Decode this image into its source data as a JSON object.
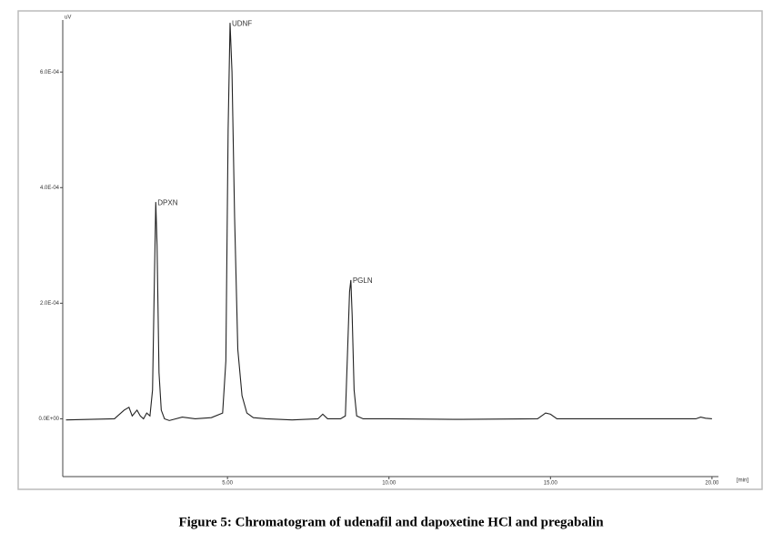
{
  "chart_data": {
    "type": "line",
    "caption": "Figure 5: Chromatogram of udenafil and dapoxetine HCl and pregabalin",
    "y_label": "uV",
    "x_label": "[min]",
    "x": [
      0,
      1.5,
      1.8,
      1.95,
      2.05,
      2.2,
      2.3,
      2.4,
      2.5,
      2.6,
      2.68,
      2.74,
      2.78,
      2.82,
      2.88,
      2.95,
      3.05,
      3.2,
      3.6,
      4.0,
      4.5,
      4.85,
      4.95,
      5.02,
      5.08,
      5.14,
      5.22,
      5.32,
      5.45,
      5.6,
      5.8,
      6.2,
      7.0,
      7.8,
      7.95,
      8.1,
      8.5,
      8.65,
      8.72,
      8.78,
      8.82,
      8.86,
      8.92,
      9.0,
      9.2,
      10.0,
      12.0,
      14.6,
      14.85,
      15.0,
      15.2,
      16.0,
      18.0,
      19.5,
      19.65,
      19.8,
      20.0
    ],
    "series": [
      {
        "color": "#222222",
        "values": [
          -2e-06,
          0,
          1.5e-05,
          2e-05,
          5e-06,
          1.5e-05,
          5e-06,
          0,
          1e-05,
          5e-06,
          5e-05,
          0.00025,
          0.000375,
          0.0003,
          8e-05,
          1.5e-05,
          0,
          -3e-06,
          3e-06,
          0,
          2e-06,
          1e-05,
          0.0001,
          0.0005,
          0.000685,
          0.0006,
          0.00035,
          0.00012,
          4e-05,
          1e-05,
          2e-06,
          0,
          -2e-06,
          0,
          8e-06,
          0,
          0,
          5e-06,
          0.00012,
          0.00022,
          0.00024,
          0.00018,
          5e-05,
          5e-06,
          0,
          0,
          -1e-06,
          0,
          1e-05,
          8e-06,
          0,
          0,
          0,
          0,
          3e-06,
          1e-06,
          0
        ]
      }
    ],
    "annotations": [
      {
        "text": "DPXN",
        "x": 2.78,
        "y": 0.000375
      },
      {
        "text": "UDNF",
        "x": 5.08,
        "y": 0.000685
      },
      {
        "text": "PGLN",
        "x": 8.82,
        "y": 0.00024
      }
    ],
    "xlim": [
      -0.1,
      20.2
    ],
    "ylim": [
      -0.0001,
      0.00069
    ],
    "xticks": [
      {
        "value": 5,
        "label": "5.00"
      },
      {
        "value": 10,
        "label": "10.00"
      },
      {
        "value": 15,
        "label": "15.00"
      },
      {
        "value": 20,
        "label": "20.00"
      }
    ],
    "yticks": [
      {
        "value": 0,
        "label": "0.0E+00"
      },
      {
        "value": 0.0002,
        "label": "2.0E-04"
      },
      {
        "value": 0.0004,
        "label": "4.0E-04"
      },
      {
        "value": 0.0006,
        "label": "6.0E-04"
      }
    ],
    "grid": false
  }
}
